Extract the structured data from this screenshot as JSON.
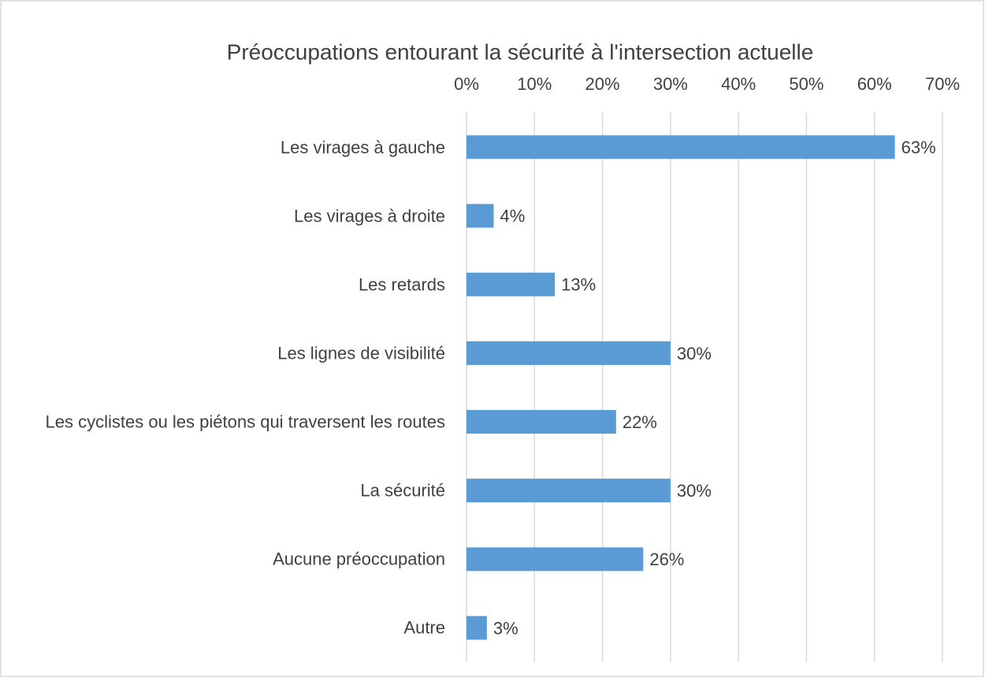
{
  "chart_data": {
    "type": "bar",
    "orientation": "horizontal",
    "title": "Préoccupations entourant la sécurité à l'intersection actuelle",
    "categories": [
      "Les virages à gauche",
      "Les virages à droite",
      "Les retards",
      "Les lignes de visibilité",
      "Les cyclistes ou les piétons qui traversent les routes",
      "La sécurité",
      "Aucune préoccupation",
      "Autre"
    ],
    "values": [
      63,
      4,
      13,
      30,
      22,
      30,
      26,
      3
    ],
    "value_labels": [
      "63%",
      "4%",
      "13%",
      "30%",
      "22%",
      "30%",
      "26%",
      "3%"
    ],
    "color": "#5b9bd5",
    "xlim": [
      0,
      70
    ],
    "xticks": [
      {
        "value": 0,
        "label": "0%"
      },
      {
        "value": 10,
        "label": "10%"
      },
      {
        "value": 20,
        "label": "20%"
      },
      {
        "value": 30,
        "label": "30%"
      },
      {
        "value": 40,
        "label": "40%"
      },
      {
        "value": 50,
        "label": "50%"
      },
      {
        "value": 60,
        "label": "60%"
      },
      {
        "value": 70,
        "label": "70%"
      }
    ],
    "grid": true
  }
}
